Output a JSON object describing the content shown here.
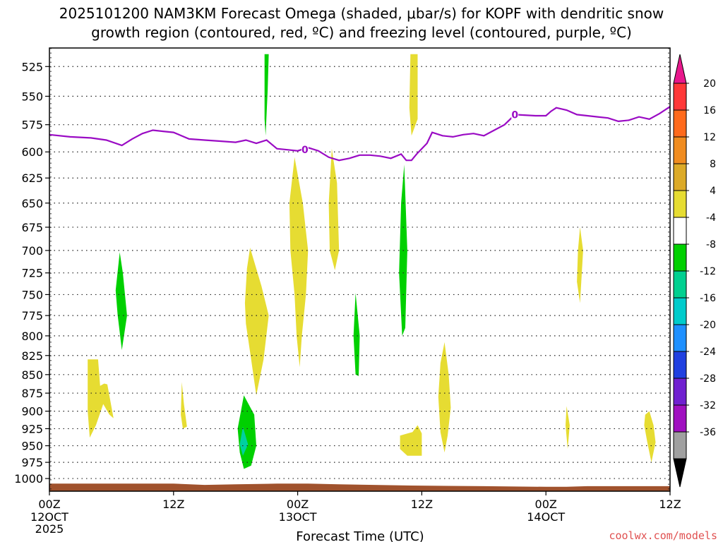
{
  "title_line1": "2025101200 NAM3KM Forecast Omega (shaded, μbar/s) for KOPF with dendritic snow",
  "title_line2": "growth region (contoured, red, ºC) and freezing level (contoured, purple, ºC)",
  "credit": "coolwx.com/models",
  "colors": {
    "freezing_line": "#9a0bc4",
    "ground": "#a0522d",
    "grid": "#222222"
  },
  "chart_data": {
    "type": "heatmap",
    "title": "2025101200 NAM3KM Forecast Omega (shaded, μbar/s) for KOPF with dendritic snow growth region (contoured, red, ºC) and freezing level (contoured, purple, ºC)",
    "xlabel": "Forecast Time (UTC)",
    "ylabel": "",
    "x_unit": "forecast hour",
    "xlim": [
      0,
      60
    ],
    "ylim": [
      1020,
      510
    ],
    "y_scale": "log",
    "grid": true,
    "x_ticks": [
      {
        "hour": 0,
        "label": "00Z",
        "sub": "12OCT",
        "sub2": "2025"
      },
      {
        "hour": 12,
        "label": "12Z",
        "sub": "",
        "sub2": ""
      },
      {
        "hour": 24,
        "label": "00Z",
        "sub": "13OCT",
        "sub2": ""
      },
      {
        "hour": 36,
        "label": "12Z",
        "sub": "",
        "sub2": ""
      },
      {
        "hour": 48,
        "label": "00Z",
        "sub": "14OCT",
        "sub2": ""
      },
      {
        "hour": 60,
        "label": "12Z",
        "sub": "",
        "sub2": ""
      }
    ],
    "y_ticks": [
      525,
      550,
      575,
      600,
      625,
      650,
      675,
      700,
      725,
      750,
      775,
      800,
      825,
      850,
      875,
      900,
      925,
      950,
      975,
      1000
    ],
    "freezing_level": {
      "contour_label": "0",
      "label_points": [
        [
          24.7,
          598
        ],
        [
          45.0,
          566
        ]
      ],
      "points": [
        [
          0,
          584
        ],
        [
          2,
          586
        ],
        [
          4,
          587
        ],
        [
          5.5,
          589
        ],
        [
          7,
          594
        ],
        [
          8,
          588
        ],
        [
          9,
          583
        ],
        [
          10,
          580
        ],
        [
          11,
          581
        ],
        [
          12,
          582
        ],
        [
          13.5,
          588
        ],
        [
          15,
          589
        ],
        [
          16.5,
          590
        ],
        [
          18,
          591
        ],
        [
          19,
          589
        ],
        [
          20,
          592
        ],
        [
          21,
          589
        ],
        [
          22,
          597
        ],
        [
          23,
          598
        ],
        [
          24,
          599
        ],
        [
          25,
          596
        ],
        [
          26,
          599
        ],
        [
          27,
          605
        ],
        [
          28,
          608
        ],
        [
          29,
          606
        ],
        [
          30,
          603
        ],
        [
          31,
          603
        ],
        [
          32,
          604
        ],
        [
          33,
          606
        ],
        [
          34,
          602
        ],
        [
          34.5,
          608
        ],
        [
          35,
          608
        ],
        [
          35.5,
          602
        ],
        [
          36.5,
          592
        ],
        [
          37,
          582
        ],
        [
          38,
          585
        ],
        [
          39,
          586
        ],
        [
          40,
          584
        ],
        [
          41,
          583
        ],
        [
          42,
          585
        ],
        [
          43,
          580
        ],
        [
          44,
          575
        ],
        [
          45,
          566
        ],
        [
          47,
          567
        ],
        [
          48,
          567
        ],
        [
          48.5,
          563
        ],
        [
          49,
          560
        ],
        [
          50,
          562
        ],
        [
          51,
          566
        ],
        [
          52,
          567
        ],
        [
          53,
          568
        ],
        [
          54,
          569
        ],
        [
          55,
          572
        ],
        [
          56,
          571
        ],
        [
          57,
          568
        ],
        [
          58,
          570
        ],
        [
          59,
          565
        ],
        [
          60,
          559
        ]
      ]
    },
    "omega_regions": [
      {
        "color": "#e6dc32",
        "points": [
          [
            3.7,
            830
          ],
          [
            4.7,
            830
          ],
          [
            4.9,
            865
          ],
          [
            5.3,
            862
          ],
          [
            5.6,
            863
          ],
          [
            6.2,
            910
          ],
          [
            5.8,
            905
          ],
          [
            5.2,
            890
          ],
          [
            4.5,
            920
          ],
          [
            3.9,
            938
          ],
          [
            3.7,
            900
          ]
        ]
      },
      {
        "color": "#00d000",
        "points": [
          [
            6.8,
            702
          ],
          [
            7.1,
            725
          ],
          [
            7.5,
            775
          ],
          [
            7.0,
            818
          ],
          [
            6.6,
            775
          ],
          [
            6.4,
            745
          ]
        ]
      },
      {
        "color": "#e6dc32",
        "points": [
          [
            12.8,
            860
          ],
          [
            13.0,
            890
          ],
          [
            13.3,
            922
          ],
          [
            12.9,
            925
          ],
          [
            12.7,
            905
          ]
        ]
      },
      {
        "color": "#e6dc32",
        "points": [
          [
            19.4,
            697
          ],
          [
            20.5,
            740
          ],
          [
            21.2,
            775
          ],
          [
            20.7,
            830
          ],
          [
            20.0,
            878
          ],
          [
            19.5,
            830
          ],
          [
            19.0,
            785
          ],
          [
            18.9,
            760
          ],
          [
            19.1,
            720
          ]
        ]
      },
      {
        "color": "#00d000",
        "points": [
          [
            18.8,
            878
          ],
          [
            19.8,
            905
          ],
          [
            20.0,
            950
          ],
          [
            19.5,
            980
          ],
          [
            18.8,
            985
          ],
          [
            18.4,
            960
          ],
          [
            18.2,
            925
          ]
        ]
      },
      {
        "color": "#00d0a0",
        "points": [
          [
            18.7,
            922
          ],
          [
            19.2,
            948
          ],
          [
            18.7,
            965
          ],
          [
            18.4,
            948
          ]
        ]
      },
      {
        "color": "#00d000",
        "points": [
          [
            20.8,
            515
          ],
          [
            21.2,
            515
          ],
          [
            21.1,
            545
          ],
          [
            20.9,
            585
          ],
          [
            20.8,
            570
          ]
        ]
      },
      {
        "color": "#e6dc32",
        "points": [
          [
            23.7,
            605
          ],
          [
            24.5,
            650
          ],
          [
            25.0,
            700
          ],
          [
            24.8,
            750
          ],
          [
            24.4,
            800
          ],
          [
            24.2,
            840
          ],
          [
            23.9,
            800
          ],
          [
            23.7,
            750
          ],
          [
            23.3,
            700
          ],
          [
            23.2,
            650
          ]
        ]
      },
      {
        "color": "#e6dc32",
        "points": [
          [
            27.3,
            597
          ],
          [
            27.8,
            630
          ],
          [
            28.0,
            700
          ],
          [
            27.6,
            722
          ],
          [
            27.1,
            700
          ],
          [
            27.0,
            650
          ]
        ]
      },
      {
        "color": "#00d000",
        "points": [
          [
            29.6,
            748
          ],
          [
            30.0,
            800
          ],
          [
            29.9,
            852
          ],
          [
            29.6,
            850
          ],
          [
            29.4,
            800
          ]
        ]
      },
      {
        "color": "#00d000",
        "points": [
          [
            34.3,
            612
          ],
          [
            34.6,
            700
          ],
          [
            34.4,
            790
          ],
          [
            34.1,
            800
          ],
          [
            33.8,
            725
          ],
          [
            34.0,
            650
          ]
        ]
      },
      {
        "color": "#e6dc32",
        "points": [
          [
            34.9,
            515
          ],
          [
            35.6,
            515
          ],
          [
            35.6,
            570
          ],
          [
            35.0,
            585
          ],
          [
            34.8,
            560
          ]
        ]
      },
      {
        "color": "#e6dc32",
        "points": [
          [
            34.6,
            932
          ],
          [
            35.1,
            930
          ],
          [
            35.6,
            920
          ],
          [
            36.0,
            932
          ],
          [
            36.0,
            965
          ],
          [
            34.6,
            965
          ],
          [
            33.9,
            955
          ],
          [
            33.9,
            935
          ]
        ]
      },
      {
        "color": "#e6dc32",
        "points": [
          [
            38.2,
            808
          ],
          [
            38.6,
            850
          ],
          [
            38.8,
            895
          ],
          [
            38.5,
            935
          ],
          [
            38.2,
            960
          ],
          [
            37.8,
            930
          ],
          [
            37.6,
            880
          ],
          [
            37.8,
            835
          ]
        ]
      },
      {
        "color": "#e6dc32",
        "points": [
          [
            51.3,
            675
          ],
          [
            51.6,
            700
          ],
          [
            51.3,
            760
          ],
          [
            51.0,
            735
          ],
          [
            51.1,
            700
          ]
        ]
      },
      {
        "color": "#e6dc32",
        "points": [
          [
            50.0,
            893
          ],
          [
            50.3,
            920
          ],
          [
            50.1,
            955
          ],
          [
            49.9,
            920
          ]
        ]
      },
      {
        "color": "#e6dc32",
        "points": [
          [
            58.0,
            900
          ],
          [
            58.4,
            920
          ],
          [
            58.6,
            945
          ],
          [
            58.2,
            975
          ],
          [
            57.8,
            945
          ],
          [
            57.5,
            920
          ],
          [
            57.6,
            905
          ]
        ]
      }
    ],
    "ground": {
      "bottom": 1020,
      "points": [
        [
          0,
          1008
        ],
        [
          12,
          1008
        ],
        [
          15,
          1010
        ],
        [
          18,
          1009
        ],
        [
          22,
          1008
        ],
        [
          25,
          1008
        ],
        [
          28,
          1009
        ],
        [
          35,
          1011
        ],
        [
          42,
          1012
        ],
        [
          48,
          1013
        ],
        [
          50,
          1013
        ],
        [
          52,
          1012
        ],
        [
          60,
          1012
        ]
      ]
    },
    "colorbar": {
      "title": "",
      "labels": [
        "20",
        "16",
        "12",
        "8",
        "4",
        "-4",
        "-8",
        "-12",
        "-16",
        "-20",
        "-24",
        "-28",
        "-32",
        "-36"
      ],
      "top_triangle_color": "#e8188c",
      "bottom_triangle_color": "#000000",
      "bins": [
        "#ff3838",
        "#ff6a1c",
        "#f08c20",
        "#dcaa28",
        "#e6dc32",
        "#ffffff",
        "#00d000",
        "#00d090",
        "#00cccc",
        "#1e90ff",
        "#2040e0",
        "#7020d0",
        "#a010c0",
        "#a0a0a0"
      ]
    }
  }
}
